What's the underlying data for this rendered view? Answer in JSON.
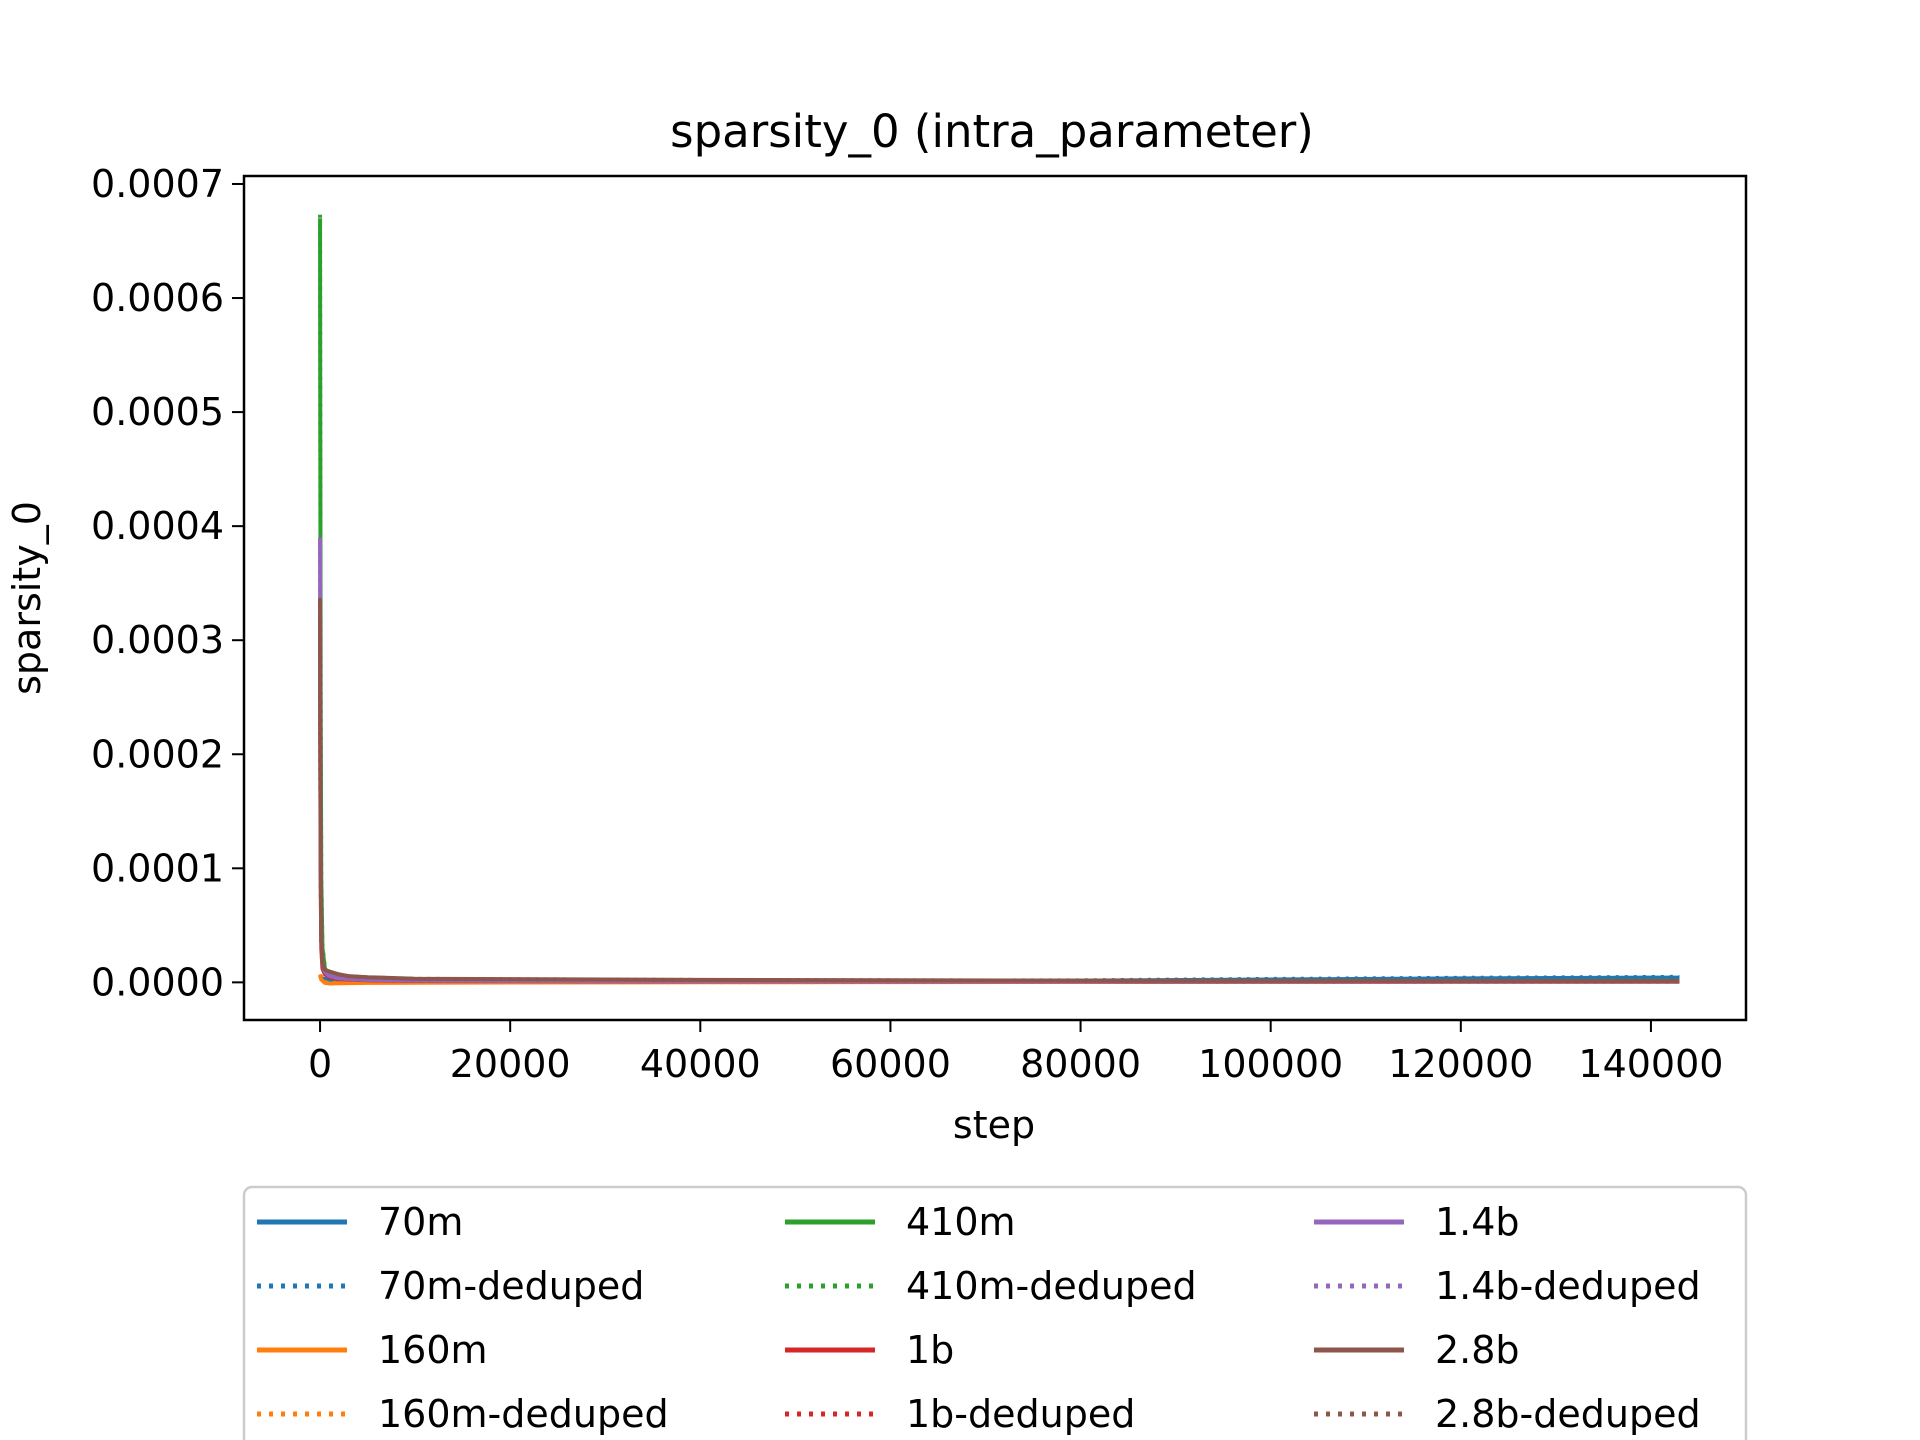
{
  "chart_data": {
    "type": "line",
    "title": "sparsity_0 (intra_parameter)",
    "xlabel": "step",
    "ylabel": "sparsity_0",
    "xlim": [
      -8000,
      150000
    ],
    "ylim": [
      -3.3e-05,
      0.000707
    ],
    "xticks": [
      0,
      20000,
      40000,
      60000,
      80000,
      100000,
      120000,
      140000
    ],
    "xtick_labels": [
      "0",
      "20000",
      "40000",
      "60000",
      "80000",
      "100000",
      "120000",
      "140000"
    ],
    "yticks": [
      0,
      0.0001,
      0.0002,
      0.0003,
      0.0004,
      0.0005,
      0.0006,
      0.0007
    ],
    "ytick_labels": [
      "0.0000",
      "0.0001",
      "0.0002",
      "0.0003",
      "0.0004",
      "0.0005",
      "0.0006",
      "0.0007"
    ],
    "grid": false,
    "legend_position": "below-center",
    "legend_columns": 3,
    "series": [
      {
        "name": "70m",
        "color": "#1f77b4",
        "style": "solid",
        "x": [
          0,
          128,
          512,
          1000,
          2000,
          5000,
          10000,
          40000,
          80000,
          100000,
          120000,
          143000
        ],
        "y": [
          4e-06,
          3.5e-06,
          3e-06,
          2.5e-06,
          2e-06,
          1.5e-06,
          1.2e-06,
          1e-06,
          1.5e-06,
          2.5e-06,
          3.5e-06,
          4.2e-06
        ]
      },
      {
        "name": "70m-deduped",
        "color": "#1f77b4",
        "style": "dotted",
        "x": [
          0,
          128,
          512,
          1000,
          2000,
          5000,
          10000,
          40000,
          80000,
          100000,
          120000,
          143000
        ],
        "y": [
          5e-06,
          4.5e-06,
          4e-06,
          3.5e-06,
          3e-06,
          2e-06,
          1.5e-06,
          1.2e-06,
          1.8e-06,
          3e-06,
          4e-06,
          4.8e-06
        ]
      },
      {
        "name": "160m",
        "color": "#ff7f0e",
        "style": "solid",
        "x": [
          0,
          128,
          512,
          1000,
          2000,
          5000,
          10000,
          40000,
          80000,
          120000,
          143000
        ],
        "y": [
          6e-06,
          2.5e-06,
          -5e-07,
          -1e-06,
          -8e-07,
          -5e-07,
          -3e-07,
          1e-07,
          3e-07,
          5e-07,
          6e-07
        ]
      },
      {
        "name": "160m-deduped",
        "color": "#ff7f0e",
        "style": "dotted",
        "x": [
          0,
          128,
          512,
          1000,
          2000,
          5000,
          10000,
          40000,
          80000,
          120000,
          143000
        ],
        "y": [
          7e-06,
          3e-06,
          2e-07,
          -5e-07,
          -4e-07,
          -2e-07,
          0.0,
          2e-07,
          4e-07,
          6e-07,
          7e-07
        ]
      },
      {
        "name": "410m",
        "color": "#2ca02c",
        "style": "solid",
        "x": [
          0,
          16,
          64,
          128,
          256,
          512,
          1000,
          2000,
          5000,
          10000,
          40000,
          80000,
          120000,
          143000
        ],
        "y": [
          0.00067,
          0.00055,
          0.00025,
          9e-05,
          3e-05,
          1.2e-05,
          7e-06,
          4.5e-06,
          3e-06,
          2.2e-06,
          1.5e-06,
          1.2e-06,
          1.2e-06,
          1.3e-06
        ]
      },
      {
        "name": "410m-deduped",
        "color": "#2ca02c",
        "style": "dotted",
        "x": [
          0,
          16,
          64,
          128,
          256,
          512,
          1000,
          2000,
          5000,
          10000,
          40000,
          80000,
          120000,
          143000
        ],
        "y": [
          0.000673,
          0.00056,
          0.00026,
          9.5e-05,
          3.2e-05,
          1.3e-05,
          7.5e-06,
          5e-06,
          3.2e-06,
          2.4e-06,
          1.6e-06,
          1.3e-06,
          1.3e-06,
          1.4e-06
        ]
      },
      {
        "name": "1b",
        "color": "#d62728",
        "style": "solid",
        "x": [
          0,
          16,
          64,
          128,
          256,
          512,
          1000,
          2000,
          5000,
          10000,
          40000,
          80000,
          120000,
          143000
        ],
        "y": [
          0.00032,
          0.00022,
          9e-05,
          3e-05,
          1.2e-05,
          7e-06,
          4.5e-06,
          2.8e-06,
          1.8e-06,
          1.2e-06,
          8e-07,
          6e-07,
          5e-07,
          5e-07
        ]
      },
      {
        "name": "1b-deduped",
        "color": "#d62728",
        "style": "dotted",
        "x": [
          0,
          16,
          64,
          128,
          256,
          512,
          1000,
          2000,
          5000,
          10000,
          40000,
          80000,
          120000,
          143000
        ],
        "y": [
          0.00033,
          0.00023,
          9.5e-05,
          3.2e-05,
          1.3e-05,
          7.5e-06,
          5e-06,
          3e-06,
          2e-06,
          1.4e-06,
          9e-07,
          7e-07,
          6e-07,
          6e-07
        ]
      },
      {
        "name": "1.4b",
        "color": "#9467bd",
        "style": "solid",
        "x": [
          0,
          16,
          64,
          128,
          256,
          512,
          1000,
          2000,
          5000,
          10000,
          40000,
          80000,
          120000,
          143000
        ],
        "y": [
          0.00039,
          0.00028,
          0.00011,
          4e-05,
          1.6e-05,
          9e-06,
          5.5e-06,
          3.5e-06,
          2.2e-06,
          1.5e-06,
          1e-06,
          8e-07,
          7e-07,
          7e-07
        ]
      },
      {
        "name": "1.4b-deduped",
        "color": "#9467bd",
        "style": "dotted",
        "x": [
          0,
          16,
          64,
          128,
          256,
          512,
          1000,
          2000,
          5000,
          10000,
          40000,
          80000,
          120000,
          143000
        ],
        "y": [
          0.000385,
          0.000275,
          0.000108,
          3.9e-05,
          1.55e-05,
          8.8e-06,
          5.3e-06,
          3.4e-06,
          2.1e-06,
          1.4e-06,
          1e-06,
          8e-07,
          7e-07,
          7e-07
        ]
      },
      {
        "name": "2.8b",
        "color": "#8c564b",
        "style": "solid",
        "x": [
          0,
          16,
          64,
          128,
          256,
          512,
          1000,
          2000,
          3000,
          5000,
          10000,
          40000,
          80000,
          120000,
          143000
        ],
        "y": [
          0.000337,
          0.00025,
          0.00011,
          4e-05,
          1.6e-05,
          1.1e-05,
          9.5e-06,
          7e-06,
          5.5e-06,
          4.5e-06,
          3.2e-06,
          2.2e-06,
          1.5e-06,
          1.2e-06,
          1.2e-06
        ]
      },
      {
        "name": "2.8b-deduped",
        "color": "#8c564b",
        "style": "dotted",
        "x": [
          0,
          16,
          64,
          128,
          256,
          512,
          1000,
          2000,
          3000,
          5000,
          10000,
          40000,
          80000,
          120000,
          143000
        ],
        "y": [
          0.00033,
          0.000245,
          0.000108,
          3.9e-05,
          1.58e-05,
          1.08e-05,
          9.3e-06,
          6.8e-06,
          5.4e-06,
          4.4e-06,
          3.1e-06,
          2.1e-06,
          1.5e-06,
          1.2e-06,
          1.2e-06
        ]
      }
    ]
  }
}
